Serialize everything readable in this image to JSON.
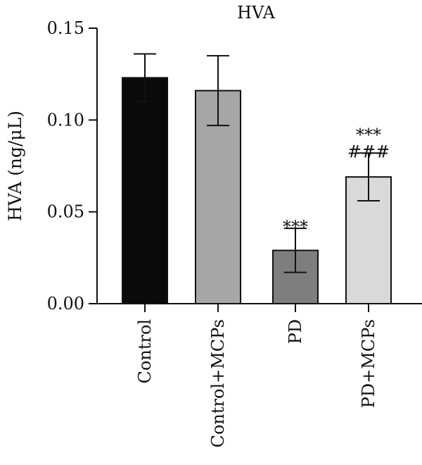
{
  "chart_data": {
    "type": "bar",
    "title": "HVA",
    "xlabel": "",
    "ylabel": "HVA (ng/μL)",
    "ylim": [
      0,
      0.15
    ],
    "yticks": [
      "0.00",
      "0.05",
      "0.10",
      "0.15"
    ],
    "ytick_values": [
      0,
      0.05,
      0.1,
      0.15
    ],
    "categories": [
      "Control",
      "Control+MCPs",
      "PD",
      "PD+MCPs"
    ],
    "values": [
      0.123,
      0.116,
      0.029,
      0.069
    ],
    "errors": [
      0.013,
      0.019,
      0.012,
      0.013
    ],
    "colors": [
      "#0a0a0a",
      "#a6a6a8",
      "#7d7f7e",
      "#d9d9d9"
    ],
    "annotations": [
      {
        "category": "PD",
        "lines": [
          "***"
        ]
      },
      {
        "category": "PD+MCPs",
        "lines": [
          "***",
          "###"
        ]
      }
    ],
    "grid": false,
    "legend": "none"
  }
}
